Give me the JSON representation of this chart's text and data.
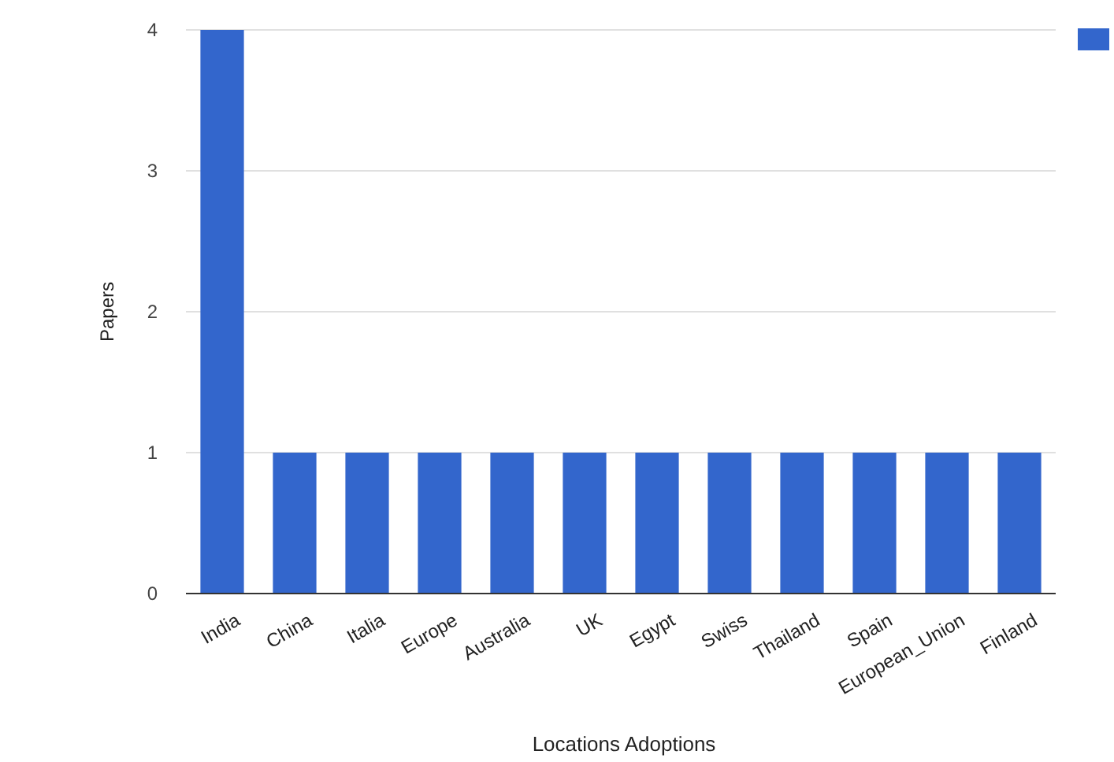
{
  "chart_data": {
    "type": "bar",
    "xlabel": "Locations Adoptions",
    "ylabel": "Papers",
    "categories": [
      "India",
      "China",
      "Italia",
      "Europe",
      "Australia",
      "UK",
      "Egypt",
      "Swiss",
      "Thailand",
      "Spain",
      "European_Union",
      "Finland"
    ],
    "values": [
      4,
      1,
      1,
      1,
      1,
      1,
      1,
      1,
      1,
      1,
      1,
      1
    ],
    "color": "#3366cc",
    "ylim": [
      0,
      4
    ],
    "yticks": [
      0,
      1,
      2,
      3,
      4
    ],
    "grid": "y"
  }
}
